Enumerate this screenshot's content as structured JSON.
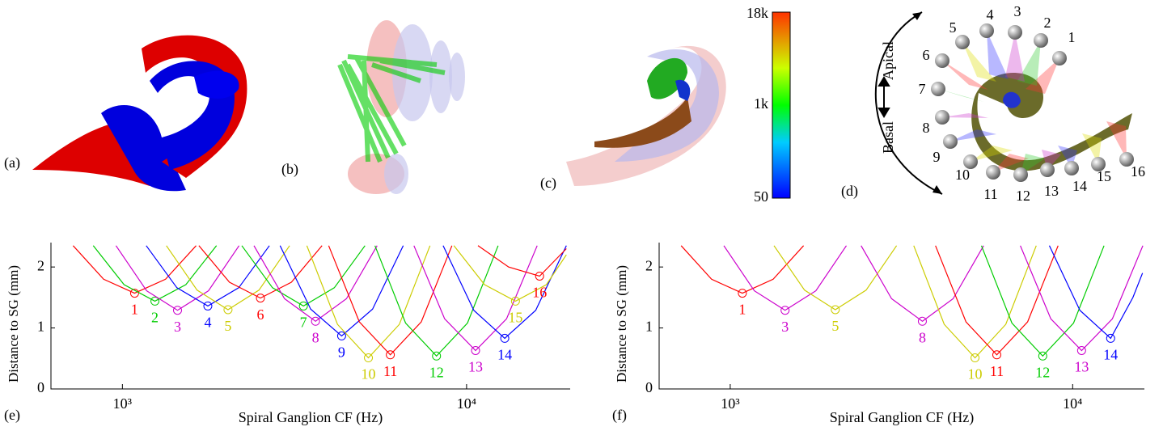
{
  "panels": {
    "a": "(a)",
    "b": "(b)",
    "c": "(c)",
    "d": "(d)"
  },
  "colorbar": {
    "labels": [
      "18k",
      "1k",
      "50"
    ]
  },
  "diagram_d": {
    "apical": "Apical",
    "basal": "Basal",
    "electrodes": [
      "1",
      "2",
      "3",
      "4",
      "5",
      "6",
      "7",
      "8",
      "9",
      "10",
      "11",
      "12",
      "13",
      "14",
      "15",
      "16"
    ]
  },
  "chart_data": [
    {
      "type": "line",
      "label": "(e)",
      "xlabel": "Spiral Ganglion CF (Hz)",
      "ylabel": "Distance to SG (mm)",
      "log_x": true,
      "xlim": [
        620,
        20000
      ],
      "ylim": [
        0,
        2.4
      ],
      "xticks": [
        {
          "value": 1000,
          "label": "10³"
        },
        {
          "value": 10000,
          "label": "10⁴"
        }
      ],
      "yticks": [
        0,
        1,
        2
      ],
      "series": [
        {
          "name": "1",
          "color": "#ff0000",
          "x": [
            719,
            882,
            1085,
            1335,
            1638
          ],
          "values": [
            2.35,
            1.8,
            1.57,
            1.8,
            2.35
          ]
        },
        {
          "name": "2",
          "color": "#00cc00",
          "x": [
            823,
            1011,
            1243,
            1529,
            1877
          ],
          "values": [
            2.35,
            1.71,
            1.44,
            1.71,
            2.35
          ]
        },
        {
          "name": "3",
          "color": "#cc00cc",
          "x": [
            958,
            1176,
            1446,
            1779,
            2183
          ],
          "values": [
            2.35,
            1.61,
            1.29,
            1.61,
            2.35
          ]
        },
        {
          "name": "4",
          "color": "#0000ff",
          "x": [
            1173,
            1440,
            1771,
            2178,
            2674
          ],
          "values": [
            2.35,
            1.66,
            1.36,
            1.66,
            2.35
          ]
        },
        {
          "name": "5",
          "color": "#cccc00",
          "x": [
            1342,
            1648,
            2027,
            2493,
            3061
          ],
          "values": [
            2.35,
            1.62,
            1.3,
            1.62,
            2.35
          ]
        },
        {
          "name": "6",
          "color": "#ff0000",
          "x": [
            1668,
            2047,
            2518,
            3097,
            3802
          ],
          "values": [
            2.35,
            1.75,
            1.49,
            1.75,
            2.35
          ]
        },
        {
          "name": "7",
          "color": "#00cc00",
          "x": [
            2223,
            2729,
            3357,
            4129,
            5069
          ],
          "values": [
            2.35,
            1.66,
            1.36,
            1.66,
            2.35
          ]
        },
        {
          "name": "8",
          "color": "#cc00cc",
          "x": [
            2411,
            2959,
            3640,
            4477,
            5496
          ],
          "values": [
            2.35,
            1.48,
            1.11,
            1.48,
            2.35
          ]
        },
        {
          "name": "9",
          "color": "#0000ff",
          "x": [
            2871,
            3524,
            4335,
            5332,
            6546
          ],
          "values": [
            2.35,
            1.31,
            0.87,
            1.31,
            2.35
          ]
        },
        {
          "name": "10",
          "color": "#cccc00",
          "x": [
            3434,
            4216,
            5186,
            6379,
            7831
          ],
          "values": [
            2.35,
            1.06,
            0.51,
            1.06,
            2.35
          ]
        },
        {
          "name": "11",
          "color": "#ff0000",
          "x": [
            3976,
            4881,
            6004,
            7385,
            9066
          ],
          "values": [
            2.35,
            1.1,
            0.56,
            1.1,
            2.35
          ]
        },
        {
          "name": "12",
          "color": "#00cc00",
          "x": [
            5416,
            6649,
            8178,
            10059,
            12349
          ],
          "values": [
            2.35,
            1.08,
            0.54,
            1.08,
            2.35
          ]
        },
        {
          "name": "13",
          "color": "#cc00cc",
          "x": [
            7033,
            8634,
            10620,
            13063,
            16036
          ],
          "values": [
            2.35,
            1.15,
            0.63,
            1.15,
            2.35
          ]
        },
        {
          "name": "14",
          "color": "#0000ff",
          "x": [
            8550,
            10496,
            12910,
            15879,
            19494
          ],
          "values": [
            2.35,
            1.29,
            0.83,
            1.29,
            2.35
          ]
        },
        {
          "name": "15",
          "color": "#cccc00",
          "x": [
            9185,
            11276,
            13870,
            17060,
            19500
          ],
          "values": [
            2.35,
            1.71,
            1.44,
            1.71,
            2.2
          ]
        },
        {
          "name": "16",
          "color": "#ff0000",
          "x": [
            10795,
            13252,
            16300,
            19500
          ],
          "values": [
            2.35,
            2.0,
            1.85,
            2.3
          ]
        }
      ]
    },
    {
      "type": "line",
      "label": "(f)",
      "xlabel": "Spiral Ganglion CF (Hz)",
      "ylabel": "Distance to SG (mm)",
      "log_x": true,
      "xlim": [
        620,
        16200
      ],
      "ylim": [
        0,
        2.4
      ],
      "xticks": [
        {
          "value": 1000,
          "label": "10³"
        },
        {
          "value": 10000,
          "label": "10⁴"
        }
      ],
      "yticks": [
        0,
        1,
        2
      ],
      "series": [
        {
          "name": "1",
          "color": "#ff0000",
          "x": [
            719,
            882,
            1085,
            1335,
            1638
          ],
          "values": [
            2.35,
            1.8,
            1.57,
            1.8,
            2.35
          ]
        },
        {
          "name": "3",
          "color": "#cc00cc",
          "x": [
            958,
            1176,
            1446,
            1779,
            2183
          ],
          "values": [
            2.35,
            1.61,
            1.29,
            1.61,
            2.35
          ]
        },
        {
          "name": "5",
          "color": "#cccc00",
          "x": [
            1342,
            1648,
            2027,
            2493,
            3061
          ],
          "values": [
            2.35,
            1.62,
            1.3,
            1.62,
            2.35
          ]
        },
        {
          "name": "8",
          "color": "#cc00cc",
          "x": [
            2411,
            2959,
            3640,
            4477,
            5496
          ],
          "values": [
            2.35,
            1.48,
            1.11,
            1.48,
            2.35
          ]
        },
        {
          "name": "10",
          "color": "#cccc00",
          "x": [
            3434,
            4216,
            5186,
            6379,
            7831
          ],
          "values": [
            2.35,
            1.06,
            0.51,
            1.06,
            2.35
          ]
        },
        {
          "name": "11",
          "color": "#ff0000",
          "x": [
            3976,
            4881,
            6004,
            7385,
            9066
          ],
          "values": [
            2.35,
            1.1,
            0.56,
            1.1,
            2.35
          ]
        },
        {
          "name": "12",
          "color": "#00cc00",
          "x": [
            5416,
            6649,
            8178,
            10059,
            12349
          ],
          "values": [
            2.35,
            1.08,
            0.54,
            1.08,
            2.35
          ]
        },
        {
          "name": "13",
          "color": "#cc00cc",
          "x": [
            7033,
            8634,
            10620,
            13063,
            16036
          ],
          "values": [
            2.35,
            1.15,
            0.63,
            1.15,
            2.35
          ]
        },
        {
          "name": "14",
          "color": "#0000ff",
          "x": [
            8550,
            10496,
            12910,
            15000,
            16000
          ],
          "values": [
            2.35,
            1.29,
            0.83,
            1.5,
            1.9
          ]
        }
      ]
    }
  ]
}
